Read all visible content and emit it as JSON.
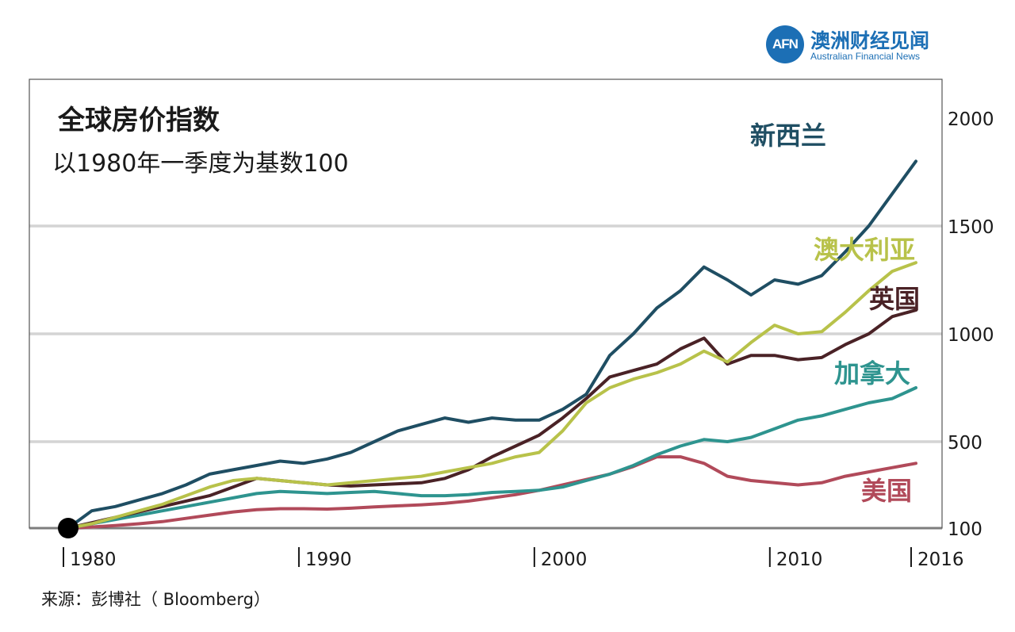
{
  "brand": {
    "logo_text": "AFN",
    "name_cn": "澳洲财经见闻",
    "name_en": "Australian Financial News"
  },
  "source": "来源：彭博社（ Bloomberg）",
  "chart_data": {
    "type": "line",
    "title": "全球房价指数",
    "subtitle": "以1980年一季度为基数100",
    "xlabel": "",
    "ylabel": "",
    "x_ticks": [
      "1980",
      "1990",
      "2000",
      "2010",
      "2016"
    ],
    "y_ticks": [
      "100",
      "500",
      "1000",
      "1500",
      "2000"
    ],
    "y_tick_values": [
      100,
      500,
      1000,
      1500,
      2000
    ],
    "ylim": [
      100,
      2150
    ],
    "xlim": [
      1980,
      2017.2
    ],
    "grid": true,
    "x": [
      1980,
      1981,
      1982,
      1983,
      1984,
      1985,
      1986,
      1987,
      1988,
      1989,
      1990,
      1991,
      1992,
      1993,
      1994,
      1995,
      1996,
      1997,
      1998,
      1999,
      2000,
      2001,
      2002,
      2003,
      2004,
      2005,
      2006,
      2007,
      2008,
      2009,
      2010,
      2011,
      2012,
      2013,
      2014,
      2015,
      2016
    ],
    "series": [
      {
        "name": "新西兰",
        "color": "#1f4e63",
        "values": [
          100,
          180,
          200,
          230,
          260,
          300,
          350,
          370,
          390,
          410,
          400,
          420,
          450,
          500,
          550,
          580,
          610,
          590,
          610,
          600,
          600,
          650,
          720,
          900,
          1000,
          1120,
          1200,
          1310,
          1250,
          1180,
          1250,
          1230,
          1270,
          1380,
          1500,
          1650,
          1800
        ]
      },
      {
        "name": "澳大利亚",
        "color": "#b8c24a",
        "values": [
          100,
          120,
          150,
          180,
          210,
          250,
          290,
          320,
          330,
          320,
          310,
          300,
          310,
          320,
          330,
          340,
          360,
          380,
          400,
          430,
          450,
          550,
          680,
          750,
          790,
          820,
          860,
          920,
          870,
          960,
          1040,
          1000,
          1010,
          1100,
          1200,
          1290,
          1330
        ]
      },
      {
        "name": "英国",
        "color": "#4a2226",
        "values": [
          100,
          125,
          150,
          175,
          200,
          225,
          250,
          290,
          330,
          320,
          310,
          300,
          295,
          300,
          305,
          310,
          330,
          370,
          430,
          480,
          530,
          610,
          700,
          800,
          830,
          860,
          930,
          980,
          860,
          900,
          900,
          880,
          890,
          950,
          1000,
          1080,
          1110
        ]
      },
      {
        "name": "加拿大",
        "color": "#2e948f",
        "values": [
          100,
          120,
          140,
          160,
          180,
          200,
          220,
          240,
          260,
          270,
          265,
          260,
          265,
          270,
          260,
          250,
          250,
          255,
          265,
          270,
          275,
          290,
          320,
          350,
          390,
          440,
          480,
          510,
          500,
          520,
          560,
          600,
          620,
          650,
          680,
          700,
          750
        ]
      },
      {
        "name": "美国",
        "color": "#b14a5a",
        "values": [
          100,
          105,
          112,
          120,
          130,
          145,
          160,
          175,
          185,
          190,
          190,
          188,
          192,
          198,
          203,
          208,
          215,
          225,
          240,
          255,
          275,
          300,
          325,
          350,
          385,
          430,
          430,
          400,
          340,
          320,
          310,
          300,
          310,
          340,
          360,
          380,
          400
        ]
      }
    ]
  }
}
